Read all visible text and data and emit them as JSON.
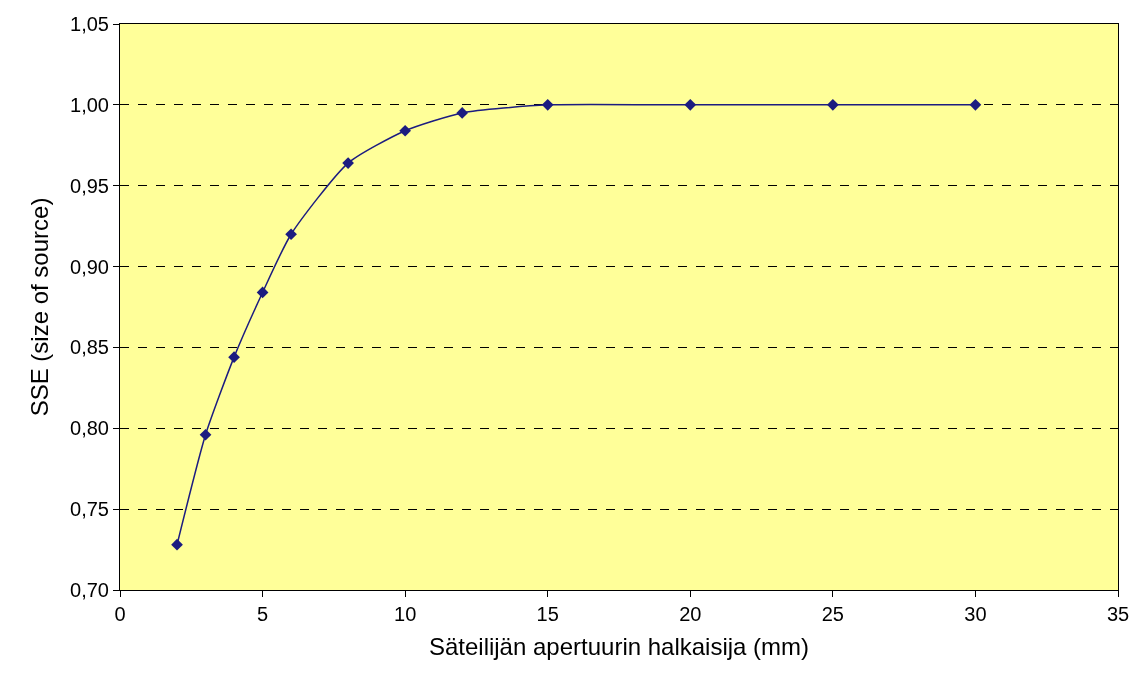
{
  "chart_data": {
    "type": "line",
    "xlabel": "Säteilijän apertuurin halkaisija (mm)",
    "ylabel": "SSE (size of source)",
    "x": [
      2,
      3,
      4,
      5,
      6,
      8,
      10,
      12,
      15,
      20,
      25,
      30
    ],
    "series": [
      {
        "color": "#1c1c80",
        "values": [
          0.728,
          0.796,
          0.844,
          0.884,
          0.92,
          0.964,
          0.984,
          0.995,
          1.0,
          1.0,
          1.0,
          1.0
        ]
      }
    ],
    "xlim": [
      0,
      35
    ],
    "xticks": [
      0,
      5,
      10,
      15,
      20,
      25,
      30,
      35
    ],
    "ylim": [
      0.7,
      1.05
    ],
    "yticks": [
      {
        "value": 0.7,
        "label": "0,70"
      },
      {
        "value": 0.75,
        "label": "0,75"
      },
      {
        "value": 0.8,
        "label": "0,80"
      },
      {
        "value": 0.85,
        "label": "0,85"
      },
      {
        "value": 0.9,
        "label": "0,90"
      },
      {
        "value": 0.95,
        "label": "0,95"
      },
      {
        "value": 1.0,
        "label": "1,00"
      },
      {
        "value": 1.05,
        "label": "1,05"
      }
    ],
    "grid": "y",
    "marker": "diamond",
    "line_style": "solid"
  }
}
